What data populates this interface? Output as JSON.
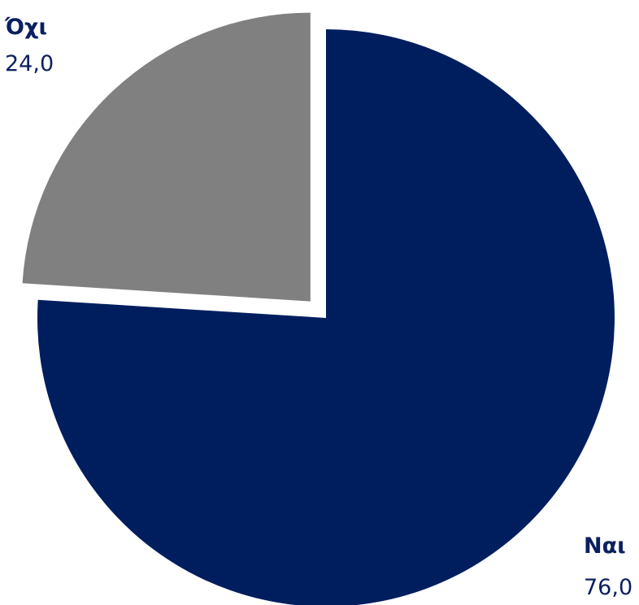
{
  "chart_data": {
    "type": "pie",
    "title": "",
    "slices": [
      {
        "label": "Ναι",
        "value": 76.0,
        "value_text": "76,0",
        "color": "#001e5e",
        "exploded": false
      },
      {
        "label": "Όχι",
        "value": 24.0,
        "value_text": "24,0",
        "color": "#808080",
        "exploded": true
      }
    ],
    "start_angle": "12 o'clock",
    "direction": "clockwise",
    "legend": "none"
  }
}
